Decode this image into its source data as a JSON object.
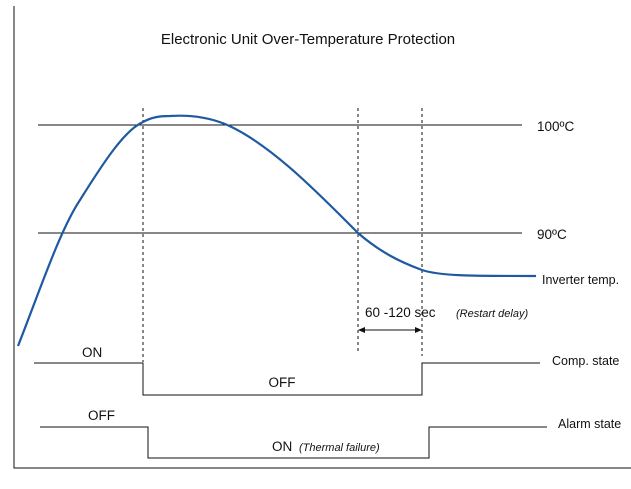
{
  "title": "Electronic Unit Over-Temperature Protection",
  "thresholds": {
    "high": "100ºC",
    "low": "90ºC"
  },
  "curve_label": "Inverter temp.",
  "delay": {
    "range": "60 -120 sec",
    "note": "(Restart delay)"
  },
  "comp_state": {
    "label": "Comp. state",
    "before": "ON",
    "during": "OFF"
  },
  "alarm_state": {
    "label": "Alarm state",
    "before": "OFF",
    "during": "ON",
    "during_note": "(Thermal failure)"
  },
  "colors": {
    "curve": "#1f5aa0",
    "lines": "#111111"
  }
}
